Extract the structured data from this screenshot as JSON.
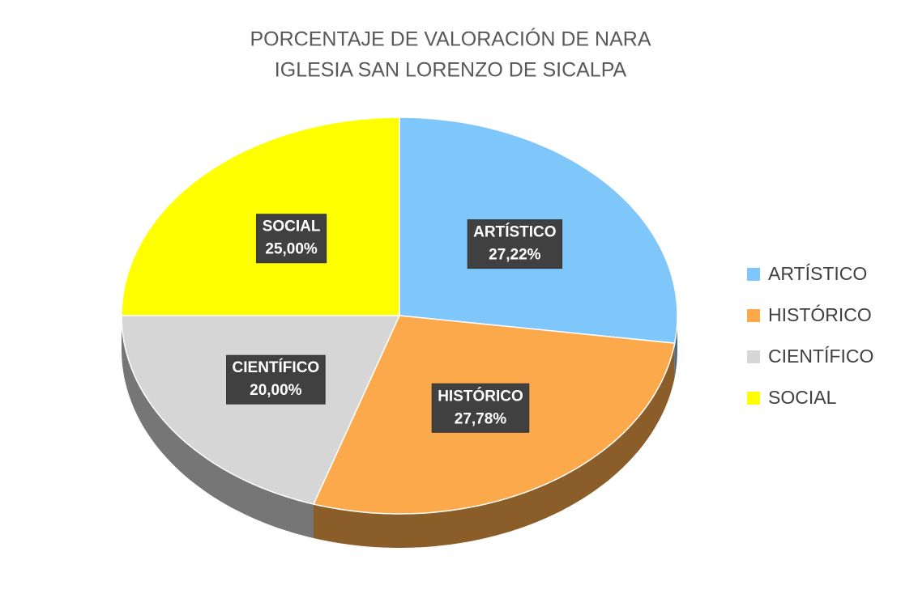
{
  "chart_data": {
    "type": "pie",
    "title": [
      "PORCENTAJE DE VALORACIÓN DE NARA",
      "IGLESIA SAN LORENZO DE SICALPA"
    ],
    "categories": [
      "ARTÍSTICO",
      "HISTÓRICO",
      "CIENTÍFICO",
      "SOCIAL"
    ],
    "values": [
      27.22,
      27.78,
      20,
      25
    ],
    "value_labels": [
      "27,22%",
      "27,78%",
      "20,00%",
      "25,00%"
    ],
    "colors": [
      "#7fc6fa",
      "#fba94b",
      "#d6d6d6",
      "#ffff00"
    ],
    "legend": "right"
  }
}
